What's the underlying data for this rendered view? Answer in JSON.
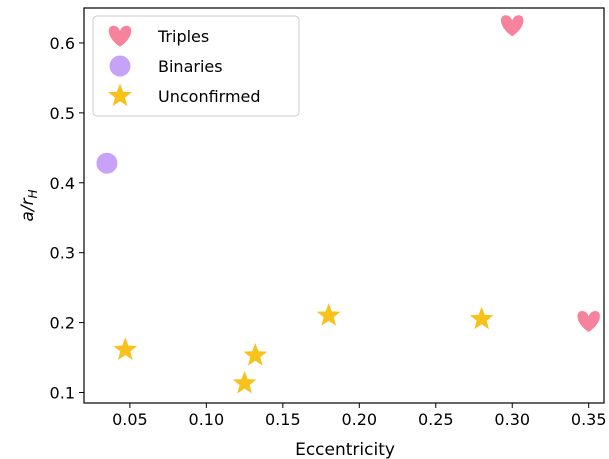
{
  "chart_data": {
    "type": "scatter",
    "xlabel": "Eccentricity",
    "ylabel": "a/r_H",
    "xlim": [
      0.02,
      0.36
    ],
    "ylim": [
      0.085,
      0.65
    ],
    "x_ticks": [
      0.05,
      0.1,
      0.15,
      0.2,
      0.25,
      0.3,
      0.35
    ],
    "x_tick_labels": [
      "0.05",
      "0.10",
      "0.15",
      "0.20",
      "0.25",
      "0.30",
      "0.35"
    ],
    "y_ticks": [
      0.1,
      0.2,
      0.3,
      0.4,
      0.5,
      0.6
    ],
    "y_tick_labels": [
      "0.1",
      "0.2",
      "0.3",
      "0.4",
      "0.5",
      "0.6"
    ],
    "grid": false,
    "legend_position": "top-left",
    "series": [
      {
        "name": "Triples",
        "marker": "heart",
        "color": "#f7829c",
        "points": [
          [
            0.3,
            0.625
          ],
          [
            0.35,
            0.202
          ]
        ]
      },
      {
        "name": "Binaries",
        "marker": "circle",
        "color": "#c8a2f8",
        "points": [
          [
            0.035,
            0.428
          ]
        ]
      },
      {
        "name": "Unconfirmed",
        "marker": "star",
        "color": "#f7c21c",
        "points": [
          [
            0.047,
            0.161
          ],
          [
            0.125,
            0.113
          ],
          [
            0.132,
            0.153
          ],
          [
            0.18,
            0.21
          ],
          [
            0.28,
            0.205
          ]
        ]
      }
    ]
  }
}
